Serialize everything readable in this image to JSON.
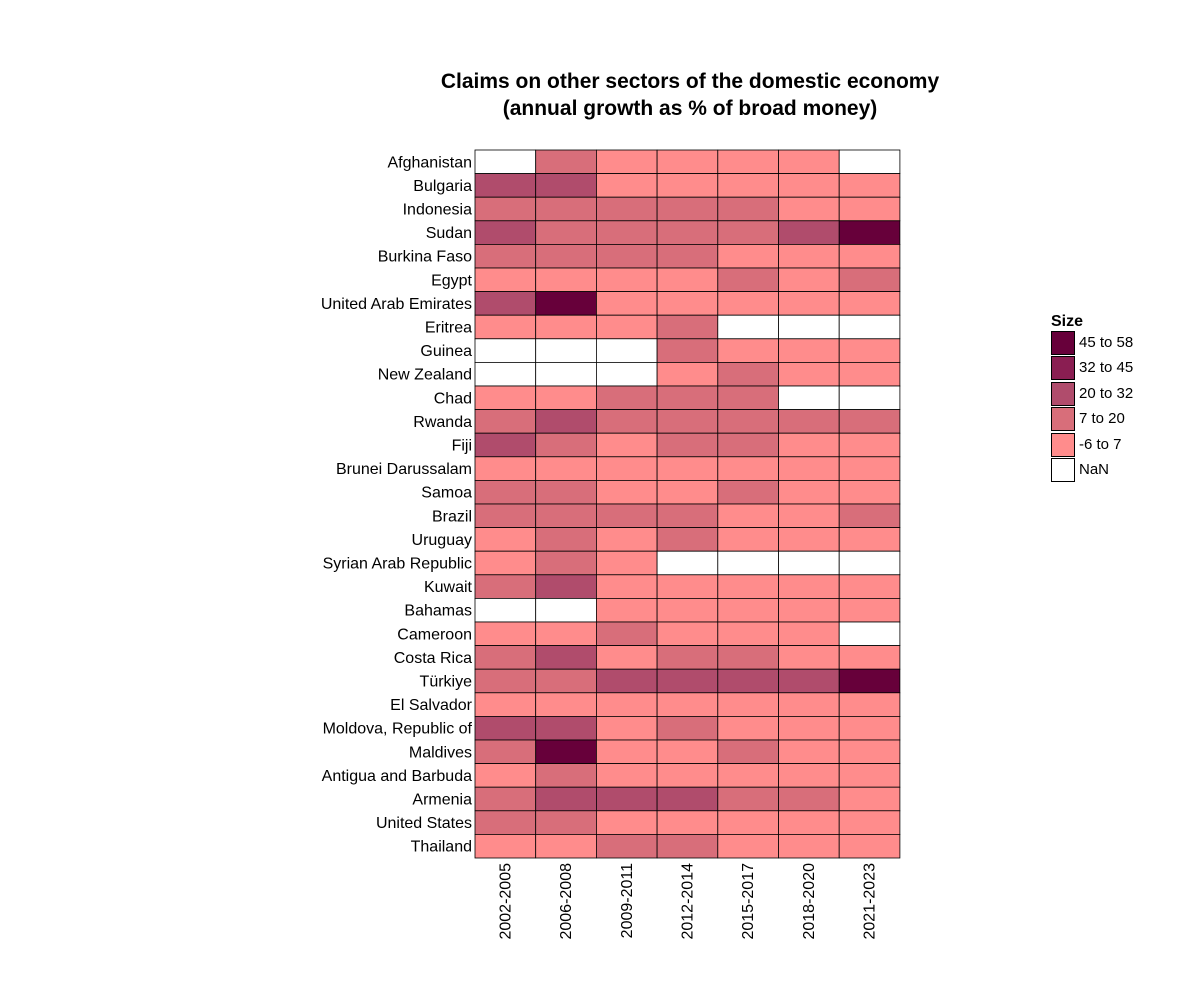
{
  "chart_data": {
    "type": "heatmap",
    "title": "Claims on other sectors of the domestic economy",
    "subtitle": "(annual growth as % of broad money)",
    "x": [
      "2002-2005",
      "2006-2008",
      "2009-2011",
      "2012-2014",
      "2015-2017",
      "2018-2020",
      "2021-2023"
    ],
    "y": [
      "Afghanistan",
      "Bulgaria",
      "Indonesia",
      "Sudan",
      "Burkina Faso",
      "Egypt",
      "United Arab Emirates",
      "Eritrea",
      "Guinea",
      "New Zealand",
      "Chad",
      "Rwanda",
      "Fiji",
      "Brunei Darussalam",
      "Samoa",
      "Brazil",
      "Uruguay",
      "Syrian Arab Republic",
      "Kuwait",
      "Bahamas",
      "Cameroon",
      "Costa Rica",
      "Türkiye",
      "El Salvador",
      "Moldova, Republic of",
      "Maldives",
      "Antigua and Barbuda",
      "Armenia",
      "United States",
      "Thailand"
    ],
    "bins": [
      {
        "label": "45 to 58",
        "color": "#67003a"
      },
      {
        "label": "32 to 45",
        "color": "#8a1e52"
      },
      {
        "label": "20 to 32",
        "color": "#b04c6c"
      },
      {
        "label": "7 to 20",
        "color": "#d86e7a"
      },
      {
        "label": "-6 to 7",
        "color": "#ff8c8c"
      },
      {
        "label": "NaN",
        "color": "#ffffff"
      }
    ],
    "cells": [
      [
        "NaN",
        "7 to 20",
        "-6 to 7",
        "-6 to 7",
        "-6 to 7",
        "-6 to 7",
        "NaN"
      ],
      [
        "20 to 32",
        "20 to 32",
        "-6 to 7",
        "-6 to 7",
        "-6 to 7",
        "-6 to 7",
        "-6 to 7"
      ],
      [
        "7 to 20",
        "7 to 20",
        "7 to 20",
        "7 to 20",
        "7 to 20",
        "-6 to 7",
        "-6 to 7"
      ],
      [
        "20 to 32",
        "7 to 20",
        "7 to 20",
        "7 to 20",
        "7 to 20",
        "20 to 32",
        "45 to 58"
      ],
      [
        "7 to 20",
        "7 to 20",
        "7 to 20",
        "7 to 20",
        "-6 to 7",
        "-6 to 7",
        "-6 to 7"
      ],
      [
        "-6 to 7",
        "-6 to 7",
        "-6 to 7",
        "-6 to 7",
        "7 to 20",
        "-6 to 7",
        "7 to 20"
      ],
      [
        "20 to 32",
        "45 to 58",
        "-6 to 7",
        "-6 to 7",
        "-6 to 7",
        "-6 to 7",
        "-6 to 7"
      ],
      [
        "-6 to 7",
        "-6 to 7",
        "-6 to 7",
        "7 to 20",
        "NaN",
        "NaN",
        "NaN"
      ],
      [
        "NaN",
        "NaN",
        "NaN",
        "7 to 20",
        "-6 to 7",
        "-6 to 7",
        "-6 to 7"
      ],
      [
        "NaN",
        "NaN",
        "NaN",
        "-6 to 7",
        "7 to 20",
        "-6 to 7",
        "-6 to 7"
      ],
      [
        "-6 to 7",
        "-6 to 7",
        "7 to 20",
        "7 to 20",
        "7 to 20",
        "NaN",
        "NaN"
      ],
      [
        "7 to 20",
        "20 to 32",
        "7 to 20",
        "7 to 20",
        "7 to 20",
        "7 to 20",
        "7 to 20"
      ],
      [
        "20 to 32",
        "7 to 20",
        "-6 to 7",
        "7 to 20",
        "7 to 20",
        "-6 to 7",
        "-6 to 7"
      ],
      [
        "-6 to 7",
        "-6 to 7",
        "-6 to 7",
        "-6 to 7",
        "-6 to 7",
        "-6 to 7",
        "-6 to 7"
      ],
      [
        "7 to 20",
        "7 to 20",
        "-6 to 7",
        "-6 to 7",
        "7 to 20",
        "-6 to 7",
        "-6 to 7"
      ],
      [
        "7 to 20",
        "7 to 20",
        "7 to 20",
        "7 to 20",
        "-6 to 7",
        "-6 to 7",
        "7 to 20"
      ],
      [
        "-6 to 7",
        "7 to 20",
        "-6 to 7",
        "7 to 20",
        "-6 to 7",
        "-6 to 7",
        "-6 to 7"
      ],
      [
        "-6 to 7",
        "7 to 20",
        "-6 to 7",
        "NaN",
        "NaN",
        "NaN",
        "NaN"
      ],
      [
        "7 to 20",
        "20 to 32",
        "-6 to 7",
        "-6 to 7",
        "-6 to 7",
        "-6 to 7",
        "-6 to 7"
      ],
      [
        "NaN",
        "NaN",
        "-6 to 7",
        "-6 to 7",
        "-6 to 7",
        "-6 to 7",
        "-6 to 7"
      ],
      [
        "-6 to 7",
        "-6 to 7",
        "7 to 20",
        "-6 to 7",
        "-6 to 7",
        "-6 to 7",
        "NaN"
      ],
      [
        "7 to 20",
        "20 to 32",
        "-6 to 7",
        "7 to 20",
        "7 to 20",
        "-6 to 7",
        "-6 to 7"
      ],
      [
        "7 to 20",
        "7 to 20",
        "20 to 32",
        "20 to 32",
        "20 to 32",
        "20 to 32",
        "45 to 58"
      ],
      [
        "-6 to 7",
        "-6 to 7",
        "-6 to 7",
        "-6 to 7",
        "-6 to 7",
        "-6 to 7",
        "-6 to 7"
      ],
      [
        "20 to 32",
        "20 to 32",
        "-6 to 7",
        "7 to 20",
        "-6 to 7",
        "-6 to 7",
        "-6 to 7"
      ],
      [
        "7 to 20",
        "45 to 58",
        "-6 to 7",
        "-6 to 7",
        "7 to 20",
        "-6 to 7",
        "-6 to 7"
      ],
      [
        "-6 to 7",
        "7 to 20",
        "-6 to 7",
        "-6 to 7",
        "-6 to 7",
        "-6 to 7",
        "-6 to 7"
      ],
      [
        "7 to 20",
        "20 to 32",
        "20 to 32",
        "20 to 32",
        "7 to 20",
        "7 to 20",
        "-6 to 7"
      ],
      [
        "7 to 20",
        "7 to 20",
        "-6 to 7",
        "-6 to 7",
        "-6 to 7",
        "-6 to 7",
        "-6 to 7"
      ],
      [
        "-6 to 7",
        "-6 to 7",
        "7 to 20",
        "7 to 20",
        "-6 to 7",
        "-6 to 7",
        "-6 to 7"
      ]
    ],
    "legend": {
      "title": "Size",
      "position": "right"
    }
  }
}
